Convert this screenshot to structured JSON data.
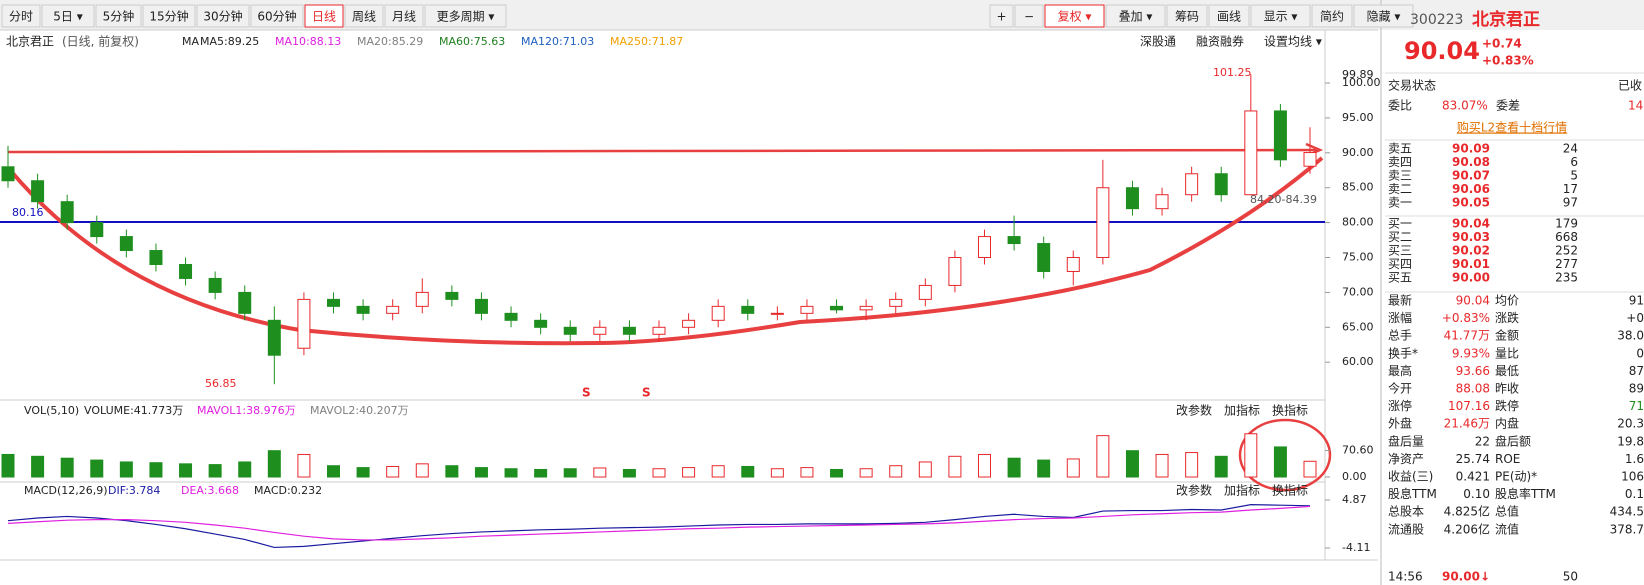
{
  "toolbar": {
    "left": [
      "分时",
      "5日 ▾",
      "5分钟",
      "15分钟",
      "30分钟",
      "60分钟",
      "日线",
      "周线",
      "月线",
      "更多周期 ▾"
    ],
    "active": "日线",
    "right": [
      "+",
      "−",
      "复权 ▾",
      "叠加 ▾",
      "筹码",
      "画线",
      "显示 ▾",
      "简约",
      "隐藏 ▾"
    ],
    "right_active": "复权 ▾"
  },
  "price_header": {
    "name": "北京君正",
    "mode": "(日线, 前复权)",
    "ma": "MA",
    "items": [
      {
        "text": "MA5:89.25",
        "color": "#222"
      },
      {
        "text": "MA10:88.13",
        "color": "#e020e0"
      },
      {
        "text": "MA20:85.29",
        "color": "#808080"
      },
      {
        "text": "MA60:75.63",
        "color": "#208020"
      },
      {
        "text": "MA120:71.03",
        "color": "#2060c0"
      },
      {
        "text": "MA250:71.87",
        "color": "#f0a000"
      }
    ],
    "links": [
      "深股通",
      "融资融券",
      "设置均线 ▾"
    ]
  },
  "annotations": {
    "high": "101.25",
    "low": "56.85",
    "level": "80.16",
    "range": "84.20-84.39",
    "axis_top": "99.89",
    "signals": [
      "S",
      "S"
    ]
  },
  "chart_data": [
    {
      "type": "candlestick",
      "ylim": [
        55.3,
        103.3
      ],
      "yticks": [
        {
          "value": 60,
          "label": "60.00"
        },
        {
          "value": 65,
          "label": "65.00"
        },
        {
          "value": 70,
          "label": "70.00"
        },
        {
          "value": 75,
          "label": "75.00"
        },
        {
          "value": 80,
          "label": "80.00"
        },
        {
          "value": 85,
          "label": "85.00"
        },
        {
          "value": 90,
          "label": "90.00"
        },
        {
          "value": 95,
          "label": "95.00"
        },
        {
          "value": 100,
          "label": "100.00"
        }
      ],
      "up_color": "#e8282b",
      "down_color": "#1e8f1e",
      "candles": [
        [
          88,
          91,
          85,
          86
        ],
        [
          86,
          87,
          82,
          83
        ],
        [
          83,
          84,
          79,
          80
        ],
        [
          80,
          81,
          77,
          78
        ],
        [
          78,
          79,
          75,
          76
        ],
        [
          76,
          77,
          73,
          74
        ],
        [
          74,
          75,
          71,
          72
        ],
        [
          72,
          73,
          69,
          70
        ],
        [
          70,
          71,
          66,
          67
        ],
        [
          66,
          68,
          56.85,
          61
        ],
        [
          62,
          70,
          61,
          69
        ],
        [
          69,
          70,
          67,
          68
        ],
        [
          68,
          69,
          66,
          67
        ],
        [
          67,
          69,
          66,
          68
        ],
        [
          68,
          72,
          67,
          70
        ],
        [
          70,
          71,
          68,
          69
        ],
        [
          69,
          70,
          66,
          67
        ],
        [
          67,
          68,
          65,
          66
        ],
        [
          66,
          67,
          64,
          65
        ],
        [
          65,
          66,
          63,
          64
        ],
        [
          64,
          66,
          63,
          65
        ],
        [
          65,
          66,
          63,
          64
        ],
        [
          64,
          66,
          63,
          65
        ],
        [
          65,
          67,
          64,
          66
        ],
        [
          66,
          69,
          65,
          68
        ],
        [
          68,
          69,
          66,
          67
        ],
        [
          67,
          68,
          66,
          67
        ],
        [
          67,
          69,
          66,
          68
        ],
        [
          68,
          69,
          67,
          67.5
        ],
        [
          67.5,
          69,
          66,
          68
        ],
        [
          68,
          70,
          67,
          69
        ],
        [
          69,
          72,
          68,
          71
        ],
        [
          71,
          76,
          70,
          75
        ],
        [
          75,
          79,
          74,
          78
        ],
        [
          78,
          81,
          76,
          77
        ],
        [
          77,
          78,
          72,
          73
        ],
        [
          73,
          76,
          71,
          75
        ],
        [
          75,
          89,
          74,
          85
        ],
        [
          85,
          86,
          81,
          82
        ],
        [
          82,
          85,
          81,
          84
        ],
        [
          84,
          88,
          83,
          87
        ],
        [
          87,
          88,
          83,
          84
        ],
        [
          84,
          101.25,
          84,
          96
        ],
        [
          96,
          97,
          88,
          89
        ],
        [
          88.08,
          93.66,
          87,
          90.04
        ]
      ]
    },
    {
      "type": "bar",
      "title": "VOL(5,10)",
      "legend": [
        "VOLUME:41.773万",
        "MAVOL1:38.976万",
        "MAVOL2:40.207万"
      ],
      "ylim": [
        0,
        125
      ],
      "yticks": [
        {
          "value": 0,
          "label": "0.00"
        },
        {
          "value": 70.6,
          "label": "70.60"
        }
      ],
      "values": [
        60,
        55,
        50,
        45,
        40,
        38,
        35,
        33,
        40,
        70,
        60,
        30,
        25,
        28,
        35,
        30,
        25,
        22,
        20,
        22,
        24,
        20,
        22,
        25,
        30,
        28,
        22,
        25,
        20,
        22,
        30,
        40,
        55,
        60,
        50,
        45,
        48,
        110,
        70,
        60,
        65,
        55,
        115,
        80,
        41.773
      ],
      "links": [
        "改参数",
        "加指标",
        "换指标"
      ]
    },
    {
      "type": "line",
      "title": "MACD(12,26,9)",
      "ylim": [
        -5.6,
        6.74
      ],
      "yticks": [
        {
          "value": -4.11,
          "label": "-4.11"
        },
        4.87
      ],
      "links": [
        "改参数",
        "加指标",
        "换指标"
      ],
      "series": [
        {
          "name": "DIF:3.784",
          "color": "#1a1aa0",
          "values": [
            1,
            1.5,
            1.8,
            1.5,
            1,
            0.3,
            -0.5,
            -1.5,
            -2.5,
            -4,
            -3.8,
            -3.3,
            -2.8,
            -2.3,
            -1.8,
            -1.4,
            -1.1,
            -0.9,
            -0.7,
            -0.6,
            -0.4,
            -0.3,
            -0.2,
            0,
            0.2,
            0.3,
            0.3,
            0.4,
            0.4,
            0.4,
            0.5,
            0.7,
            1.2,
            1.8,
            2.2,
            1.8,
            1.6,
            2.8,
            2.9,
            2.9,
            3.1,
            3.0,
            4.0,
            3.9,
            3.784
          ]
        },
        {
          "name": "DEA:3.668",
          "color": "#e020e0",
          "values": [
            0.5,
            0.8,
            1.1,
            1.2,
            1.2,
            1,
            0.7,
            0.2,
            -0.4,
            -1.2,
            -1.9,
            -2.4,
            -2.6,
            -2.6,
            -2.4,
            -2.2,
            -1.9,
            -1.7,
            -1.5,
            -1.3,
            -1.1,
            -0.9,
            -0.7,
            -0.5,
            -0.4,
            -0.2,
            -0.1,
            0,
            0.1,
            0.2,
            0.3,
            0.4,
            0.6,
            0.9,
            1.2,
            1.4,
            1.5,
            1.8,
            2.1,
            2.3,
            2.5,
            2.6,
            3.0,
            3.3,
            3.668
          ]
        }
      ],
      "extra_legend": "MACD:0.232"
    }
  ],
  "quote": {
    "code": "300223",
    "name": "北京君正",
    "price": "90.04",
    "change": "+0.74",
    "pct": "+0.83%",
    "status_label": "交易状态",
    "status": "已收",
    "ratio_label": "委比",
    "ratio": "83.07%",
    "diff_label": "委差",
    "diff": "14",
    "l2": "购买L2查看十档行情",
    "sells": [
      [
        "卖五",
        "90.09",
        "24"
      ],
      [
        "卖四",
        "90.08",
        "6"
      ],
      [
        "卖三",
        "90.07",
        "5"
      ],
      [
        "卖二",
        "90.06",
        "17"
      ],
      [
        "卖一",
        "90.05",
        "97"
      ]
    ],
    "buys": [
      [
        "买一",
        "90.04",
        "179"
      ],
      [
        "买二",
        "90.03",
        "668"
      ],
      [
        "买三",
        "90.02",
        "252"
      ],
      [
        "买四",
        "90.01",
        "277"
      ],
      [
        "买五",
        "90.00",
        "235"
      ]
    ],
    "stats": [
      [
        "最新",
        "90.04",
        "均价",
        "91"
      ],
      [
        "涨幅",
        "+0.83%",
        "涨跌",
        "+0"
      ],
      [
        "总手",
        "41.77万",
        "金额",
        "38.0"
      ],
      [
        "换手*",
        "9.93%",
        "量比",
        "0"
      ],
      [
        "最高",
        "93.66",
        "最低",
        "87"
      ],
      [
        "今开",
        "88.08",
        "昨收",
        "89"
      ],
      [
        "涨停",
        "107.16",
        "跌停",
        "71"
      ],
      [
        "外盘",
        "21.46万",
        "内盘",
        "20.3"
      ],
      [
        "盘后量",
        "22",
        "盘后额",
        "19.8"
      ],
      [
        "净资产",
        "25.74",
        "ROE",
        "1.6"
      ],
      [
        "收益(三)",
        "0.421",
        "PE(动)*",
        "106"
      ],
      [
        "股息TTM",
        "0.10",
        "股息率TTM",
        "0.1"
      ],
      [
        "总股本",
        "4.825亿",
        "总值",
        "434.5"
      ],
      [
        "流通股",
        "4.206亿",
        "流值",
        "378.7"
      ]
    ],
    "tick": [
      "14:56",
      "90.00↓",
      "50"
    ]
  }
}
